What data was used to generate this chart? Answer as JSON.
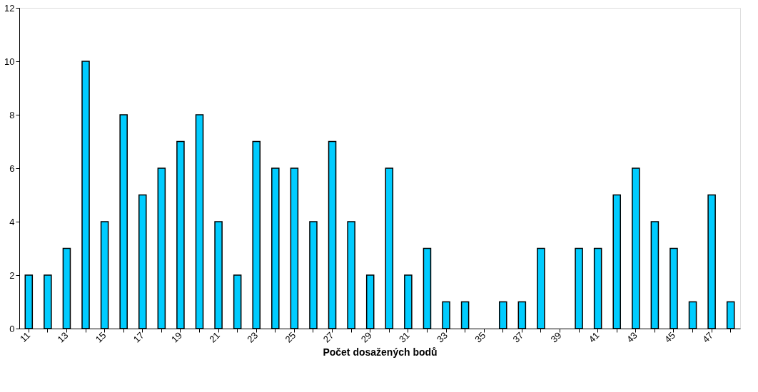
{
  "chart_data": {
    "type": "bar",
    "xlabel": "Počet dosažených bodů",
    "categories": [
      "11",
      null,
      "13",
      null,
      "15",
      null,
      "17",
      null,
      "19",
      null,
      "21",
      null,
      "23",
      null,
      "25",
      null,
      "27",
      null,
      "29",
      null,
      "31",
      null,
      "33",
      null,
      "35",
      null,
      "37",
      null,
      "39",
      null,
      "41",
      null,
      "43",
      null,
      "45",
      null,
      "47",
      null
    ],
    "values": [
      2,
      2,
      3,
      10,
      4,
      8,
      5,
      6,
      7,
      8,
      4,
      2,
      7,
      6,
      6,
      4,
      7,
      4,
      2,
      6,
      2,
      3,
      1,
      1,
      0,
      1,
      1,
      3,
      0,
      3,
      3,
      5,
      6,
      4,
      3,
      1,
      5,
      1
    ],
    "color": "#00ccff",
    "ylim": [
      0,
      12
    ],
    "yticks": [
      0,
      2,
      4,
      6,
      8,
      10,
      12
    ],
    "grid": false
  }
}
